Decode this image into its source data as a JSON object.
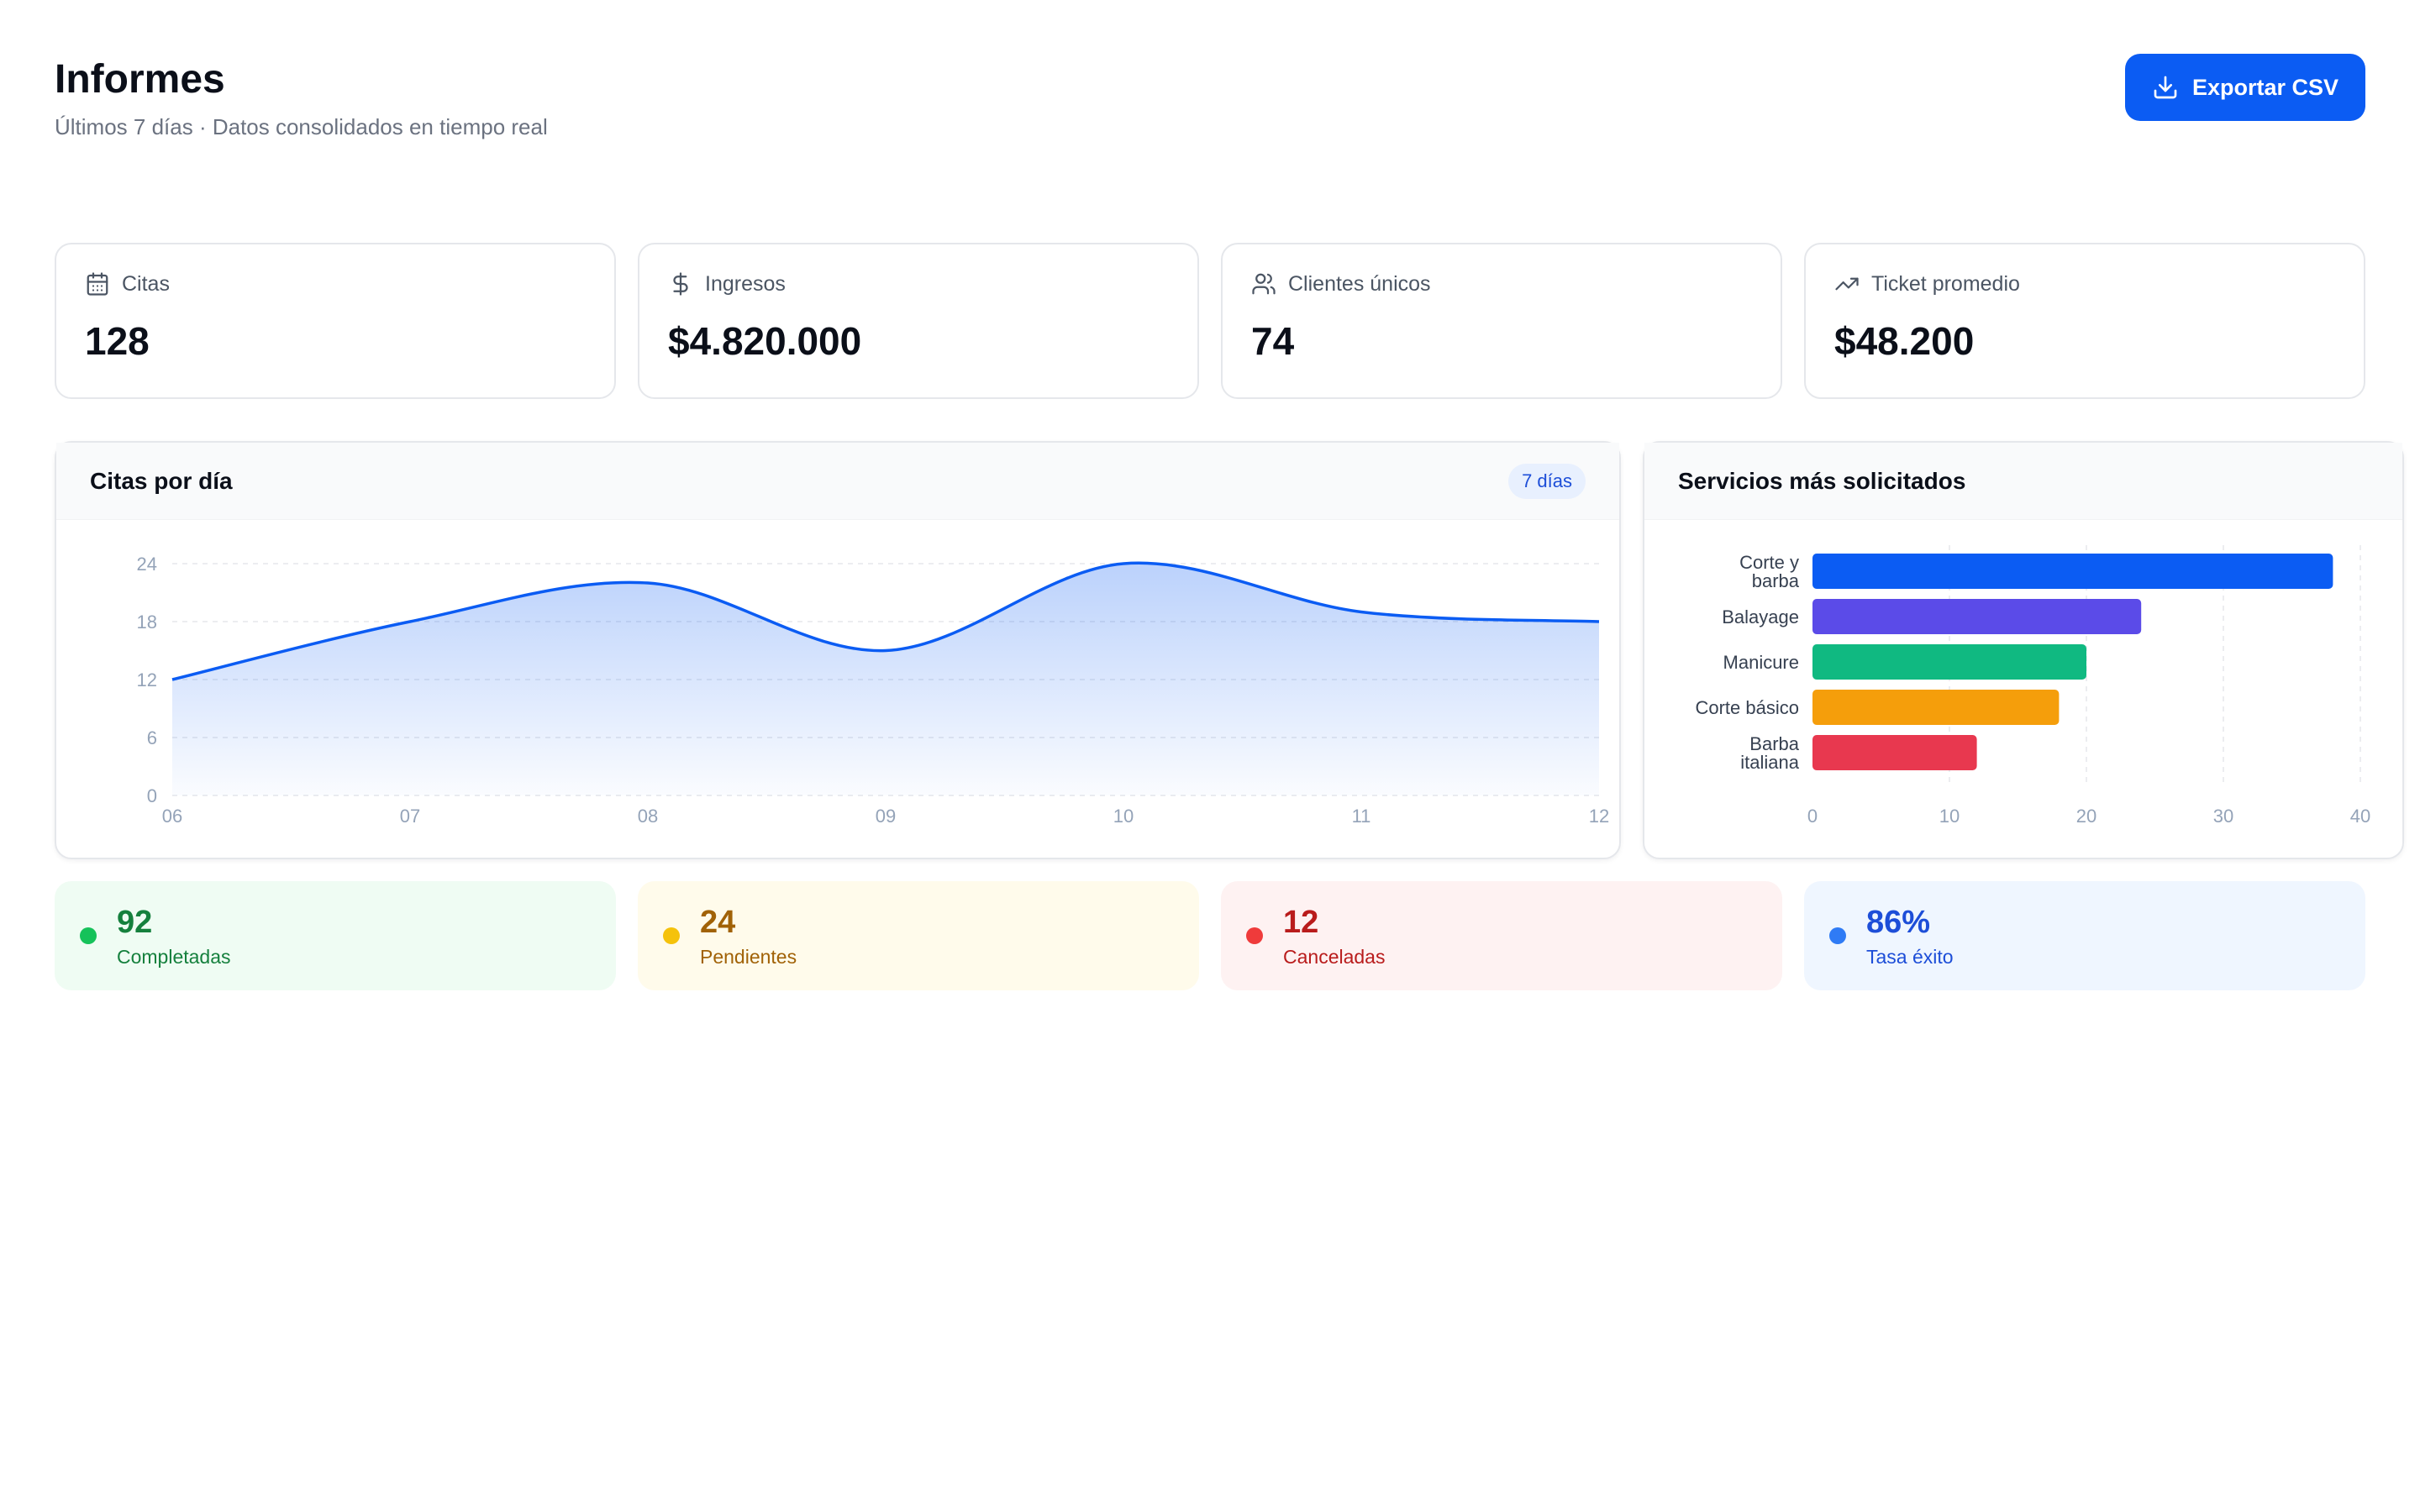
{
  "header": {
    "title": "Informes",
    "subtitle": "Últimos 7 días · Datos consolidados en tiempo real",
    "export_label": "Exportar CSV"
  },
  "kpis": [
    {
      "label": "Citas",
      "value": "128",
      "icon": "calendar-icon"
    },
    {
      "label": "Ingresos",
      "value": "$4.820.000",
      "icon": "dollar-icon"
    },
    {
      "label": "Clientes únicos",
      "value": "74",
      "icon": "users-icon"
    },
    {
      "label": "Ticket promedio",
      "value": "$48.200",
      "icon": "trending-up-icon"
    }
  ],
  "charts": {
    "daily": {
      "title": "Citas por día",
      "badge": "7 días"
    },
    "services": {
      "title": "Servicios más solicitados"
    }
  },
  "status": [
    {
      "value": "92",
      "label": "Completadas",
      "dot": "#16c25a",
      "bg": "#effcf3",
      "text": "#15803d"
    },
    {
      "value": "24",
      "label": "Pendientes",
      "dot": "#f5c20b",
      "bg": "#fffbeb",
      "text": "#a16207"
    },
    {
      "value": "12",
      "label": "Canceladas",
      "dot": "#ef3b3b",
      "bg": "#fef2f2",
      "text": "#b91c1c"
    },
    {
      "value": "86%",
      "label": "Tasa éxito",
      "dot": "#2f7bf5",
      "bg": "#eff6ff",
      "text": "#1d4ed8"
    }
  ],
  "chart_data": [
    {
      "type": "area",
      "title": "Citas por día",
      "x": [
        "06",
        "07",
        "08",
        "09",
        "10",
        "11",
        "12"
      ],
      "values": [
        12,
        18,
        22,
        15,
        24,
        19,
        18
      ],
      "ylim": [
        0,
        24
      ],
      "yticks": [
        "0",
        "6",
        "12",
        "18",
        "24"
      ],
      "grid": true,
      "color": "#0b5cf3"
    },
    {
      "type": "bar",
      "orientation": "horizontal",
      "title": "Servicios más solicitados",
      "categories": [
        {
          "line1": "Corte y",
          "line2": "barba"
        },
        {
          "line1": "Balayage",
          "line2": ""
        },
        {
          "line1": "Manicure",
          "line2": ""
        },
        {
          "line1": "Corte básico",
          "line2": ""
        },
        {
          "line1": "Barba",
          "line2": "italiana"
        }
      ],
      "values": [
        38,
        24,
        20,
        18,
        12
      ],
      "colors": [
        "#0b5cf3",
        "#5b4be8",
        "#10b981",
        "#f59e0b",
        "#e8384f"
      ],
      "xlim": [
        0,
        40
      ],
      "xticks": [
        "0",
        "10",
        "20",
        "30",
        "40"
      ],
      "grid": true
    }
  ]
}
